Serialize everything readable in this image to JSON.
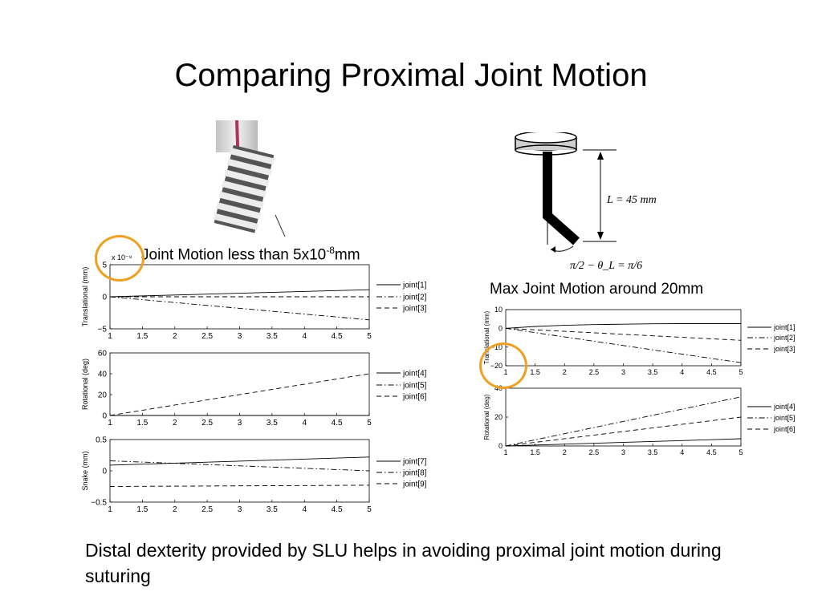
{
  "slide": {
    "title": "Comparing Proximal Joint Motion",
    "left_caption_main": "Joint Motion less than 5x10",
    "left_caption_sup": "-8",
    "left_caption_unit": "mm",
    "right_caption": "Max Joint Motion around 20mm",
    "bottom_text": "Distal dexterity provided by SLU helps in avoiding proximal joint motion during suturing",
    "diagram_length_label": "L = 45 mm",
    "diagram_angle_label": "π/2 − θ_L = π/6",
    "highlight_color": "#f0a020"
  },
  "chart_data": [
    {
      "type": "line",
      "ylabel": "Translational (mm)",
      "yscale_label": "x 10⁻⁸",
      "xlim": [
        1,
        5
      ],
      "ylim": [
        -5,
        5
      ],
      "xticks": [
        "1",
        "1.5",
        "2",
        "2.5",
        "3",
        "3.5",
        "4",
        "4.5",
        "5"
      ],
      "yticks": [
        -5,
        0,
        5
      ],
      "ytick_labels": [
        "−5",
        "0",
        "5"
      ],
      "series": [
        {
          "name": "joint[1]",
          "style": "solid",
          "x": [
            1,
            5
          ],
          "y": [
            0,
            1.1
          ]
        },
        {
          "name": "joint[2]",
          "style": "dashdot",
          "x": [
            1,
            5
          ],
          "y": [
            0,
            -3.6
          ]
        },
        {
          "name": "joint[3]",
          "style": "dashed",
          "x": [
            1,
            5
          ],
          "y": [
            0,
            0
          ]
        }
      ]
    },
    {
      "type": "line",
      "ylabel": "Rotational (deg)",
      "xlim": [
        1,
        5
      ],
      "ylim": [
        0,
        60
      ],
      "xticks": [
        "1",
        "1.5",
        "2",
        "2.5",
        "3",
        "3.5",
        "4",
        "4.5",
        "5"
      ],
      "yticks": [
        0,
        20,
        40,
        60
      ],
      "ytick_labels": [
        "0",
        "20",
        "40",
        "60"
      ],
      "series": [
        {
          "name": "joint[4]",
          "style": "solid",
          "x": [
            1,
            5
          ],
          "y": [
            0,
            0
          ]
        },
        {
          "name": "joint[5]",
          "style": "dashdot",
          "x": [
            1,
            5
          ],
          "y": [
            0,
            0
          ]
        },
        {
          "name": "joint[6]",
          "style": "dashed",
          "x": [
            1,
            5
          ],
          "y": [
            0,
            40
          ]
        }
      ]
    },
    {
      "type": "line",
      "ylabel": "Snake (mm)",
      "xlim": [
        1,
        5
      ],
      "ylim": [
        -0.5,
        0.5
      ],
      "xticks": [
        "1",
        "1.5",
        "2",
        "2.5",
        "3",
        "3.5",
        "4",
        "4.5",
        "5"
      ],
      "yticks": [
        -0.5,
        0,
        0.5
      ],
      "ytick_labels": [
        "−0.5",
        "0",
        "0.5"
      ],
      "series": [
        {
          "name": "joint[7]",
          "style": "solid",
          "x": [
            1,
            5
          ],
          "y": [
            0.09,
            0.22
          ]
        },
        {
          "name": "joint[8]",
          "style": "dashdot",
          "x": [
            1,
            5
          ],
          "y": [
            0.16,
            0.0
          ]
        },
        {
          "name": "joint[9]",
          "style": "dashed",
          "x": [
            1,
            5
          ],
          "y": [
            -0.25,
            -0.23
          ]
        }
      ]
    },
    {
      "type": "line",
      "ylabel": "Translational (mm)",
      "xlim": [
        1,
        5
      ],
      "ylim": [
        -20,
        10
      ],
      "xticks": [
        "1",
        "1.5",
        "2",
        "2.5",
        "3",
        "3.5",
        "4",
        "4.5",
        "5"
      ],
      "yticks": [
        -20,
        -10,
        0,
        10
      ],
      "ytick_labels": [
        "−20",
        "−10",
        "0",
        "10"
      ],
      "series": [
        {
          "name": "joint[1]",
          "style": "solid",
          "x": [
            1,
            1.5,
            2,
            2.5,
            3,
            3.5,
            4,
            4.5,
            5
          ],
          "y": [
            0,
            1,
            1.6,
            2,
            2.2,
            2.4,
            2.5,
            2.5,
            2.5
          ]
        },
        {
          "name": "joint[2]",
          "style": "dashdot",
          "x": [
            1,
            1.5,
            2,
            2.5,
            3,
            3.5,
            4,
            4.5,
            5
          ],
          "y": [
            0,
            -2.3,
            -4.6,
            -6.9,
            -9.2,
            -11.5,
            -13.8,
            -16.1,
            -18.3
          ]
        },
        {
          "name": "joint[3]",
          "style": "dashed",
          "x": [
            1,
            1.5,
            2,
            2.5,
            3,
            3.5,
            4,
            4.5,
            5
          ],
          "y": [
            0,
            -0.8,
            -1.6,
            -2.4,
            -3.2,
            -4,
            -4.8,
            -5.6,
            -6.4
          ]
        }
      ]
    },
    {
      "type": "line",
      "ylabel": "Rotational (deg)",
      "xlim": [
        1,
        5
      ],
      "ylim": [
        0,
        40
      ],
      "xticks": [
        "1",
        "1.5",
        "2",
        "2.5",
        "3",
        "3.5",
        "4",
        "4.5",
        "5"
      ],
      "yticks": [
        0,
        20,
        40
      ],
      "ytick_labels": [
        "0",
        "20",
        "40"
      ],
      "series": [
        {
          "name": "joint[4]",
          "style": "solid",
          "x": [
            1,
            5
          ],
          "y": [
            0,
            5
          ]
        },
        {
          "name": "joint[5]",
          "style": "dashdot",
          "x": [
            1,
            5
          ],
          "y": [
            0,
            34
          ]
        },
        {
          "name": "joint[6]",
          "style": "dashed",
          "x": [
            1,
            5
          ],
          "y": [
            0,
            20
          ]
        }
      ]
    }
  ]
}
